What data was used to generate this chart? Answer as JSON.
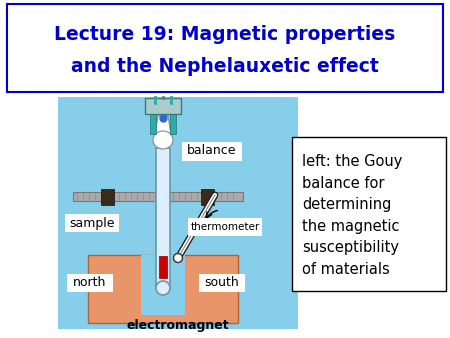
{
  "title_line1": "Lecture 19: Magnetic properties",
  "title_line2": "and the Nephelauxetic effect",
  "title_color": "#0000CC",
  "title_fontsize": 13.5,
  "title_box_edgecolor": "#0000CC",
  "bg_color": "#ffffff",
  "diagram_bg": "#87CEEB",
  "magnet_color": "#E8956A",
  "label_balance": "balance",
  "label_thermometer": "thermometer",
  "label_sample": "sample",
  "label_north": "north",
  "label_south": "south",
  "label_electromagnet": "electromagnet",
  "side_text_lines": [
    "left: the Gouy",
    "balance for",
    "determining",
    "the magnetic",
    "susceptibility",
    "of materials"
  ],
  "side_box_edgecolor": "#000000",
  "label_fontsize": 9,
  "side_fontsize": 10.5
}
